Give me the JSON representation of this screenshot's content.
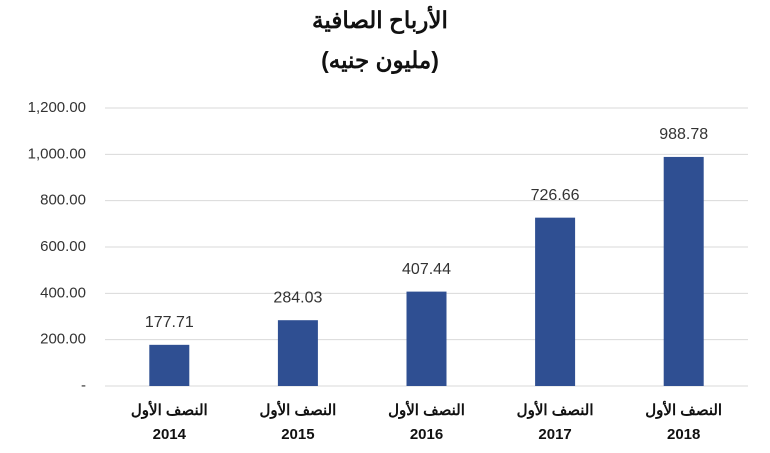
{
  "chart_data": {
    "type": "bar",
    "title": "الأرباح الصافية",
    "subtitle": "(مليون جنيه)",
    "categories": [
      [
        "النصف الأول",
        "2014"
      ],
      [
        "النصف الأول",
        "2015"
      ],
      [
        "النصف الأول",
        "2016"
      ],
      [
        "النصف الأول",
        "2017"
      ],
      [
        "النصف الأول",
        "2018"
      ]
    ],
    "values": [
      177.71,
      284.03,
      407.44,
      726.66,
      988.78
    ],
    "color": "#2f4f92",
    "ylim": [
      0,
      1200
    ],
    "yticks": [
      {
        "value": 0,
        "label": "-"
      },
      {
        "value": 200,
        "label": "200.00"
      },
      {
        "value": 400,
        "label": "400.00"
      },
      {
        "value": 600,
        "label": "600.00"
      },
      {
        "value": 800,
        "label": "800.00"
      },
      {
        "value": 1000,
        "label": "1,000.00"
      },
      {
        "value": 1200,
        "label": "1,200.00"
      }
    ],
    "grid": true
  }
}
